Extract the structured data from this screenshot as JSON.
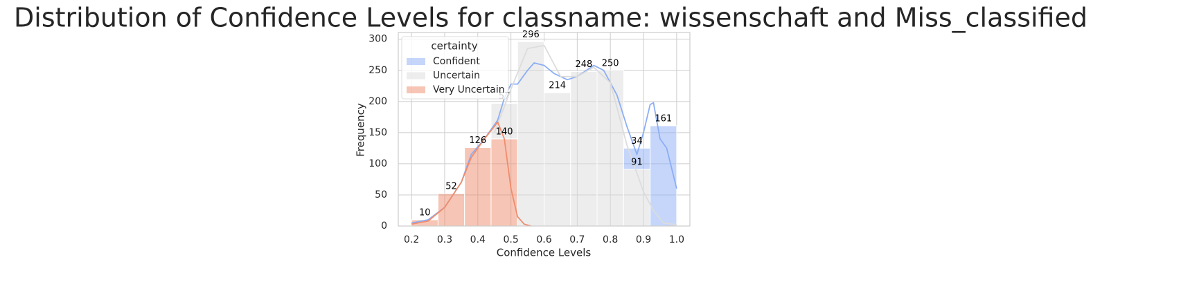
{
  "chart_data": {
    "type": "histogram",
    "stacked": true,
    "title": "Distribution of Confidence Levels for classname: wissenschaft and Miss_classified",
    "x_label": "Confidence Levels",
    "y_label": "Frequency",
    "legend_title": "certainty",
    "legend_position": "upper left",
    "grid": true,
    "bins": [
      0.2,
      0.28,
      0.36,
      0.44,
      0.52,
      0.6,
      0.68,
      0.76,
      0.84,
      0.92,
      1.0
    ],
    "series": [
      {
        "name": "Confident",
        "color": "#8caef5",
        "values": [
          null,
          null,
          null,
          null,
          null,
          null,
          null,
          null,
          34,
          161
        ],
        "kde_x": [
          0.2,
          0.25,
          0.3,
          0.35,
          0.38,
          0.42,
          0.46,
          0.48,
          0.5,
          0.52,
          0.55,
          0.57,
          0.6,
          0.63,
          0.67,
          0.7,
          0.75,
          0.78,
          0.82,
          0.85,
          0.88,
          0.9,
          0.92,
          0.93,
          0.95,
          0.97,
          1.0
        ],
        "kde_y": [
          5,
          10,
          30,
          70,
          115,
          140,
          170,
          205,
          228,
          228,
          250,
          262,
          258,
          245,
          235,
          240,
          258,
          250,
          210,
          160,
          115,
          150,
          195,
          198,
          140,
          125,
          60
        ]
      },
      {
        "name": "Uncertain",
        "color": "#dcdcdc",
        "values": [
          null,
          null,
          null,
          57,
          296,
          214,
          248,
          250,
          91,
          null
        ],
        "kde_x": [
          0.45,
          0.5,
          0.55,
          0.6,
          0.65,
          0.7,
          0.75,
          0.8,
          0.85,
          0.88,
          0.9,
          0.93,
          0.96,
          1.0
        ],
        "kde_y": [
          150,
          220,
          285,
          290,
          240,
          240,
          255,
          230,
          130,
          85,
          55,
          25,
          5,
          2
        ]
      },
      {
        "name": "Very Uncertain",
        "color": "#f08c6c",
        "values": [
          10,
          52,
          126,
          140,
          null,
          null,
          null,
          null,
          null,
          null
        ],
        "kde_x": [
          0.2,
          0.25,
          0.3,
          0.35,
          0.38,
          0.42,
          0.45,
          0.46,
          0.48,
          0.5,
          0.52,
          0.54,
          0.56
        ],
        "kde_y": [
          3,
          8,
          30,
          70,
          110,
          140,
          160,
          167,
          140,
          60,
          15,
          3,
          0
        ]
      }
    ],
    "xlim": [
      0.16,
      1.04
    ],
    "ylim": [
      0,
      310.8
    ],
    "xticks": [
      0.2,
      0.3,
      0.4,
      0.5,
      0.6,
      0.7,
      0.8,
      0.9,
      {
        "value": 1,
        "label": "1.0"
      }
    ],
    "yticks": [
      0,
      50,
      100,
      150,
      200,
      250,
      300
    ]
  }
}
